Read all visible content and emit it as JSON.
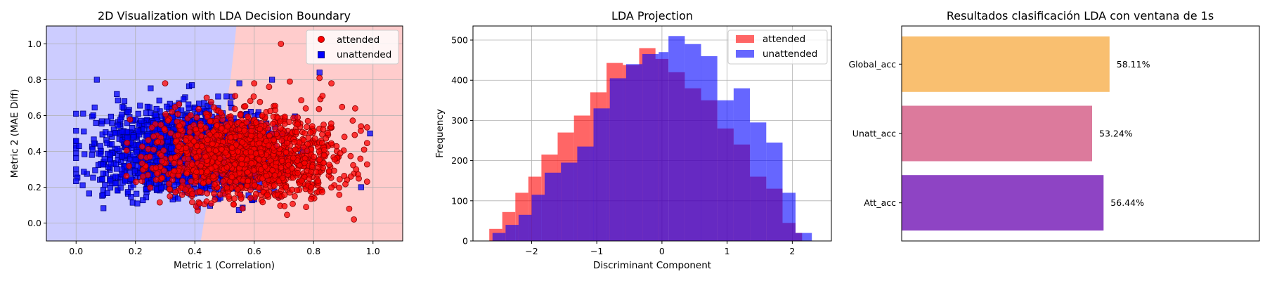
{
  "chart_data": [
    {
      "type": "scatter",
      "title": "2D Visualization with LDA Decision Boundary",
      "xlabel": "Metric 1 (Correlation)",
      "ylabel": "Metric 2 (MAE Diff)",
      "xlim": [
        -0.1,
        1.1
      ],
      "ylim": [
        -0.1,
        1.1
      ],
      "xticks": [
        "0.0",
        "0.2",
        "0.4",
        "0.6",
        "0.8",
        "1.0"
      ],
      "yticks": [
        "0.0",
        "0.2",
        "0.4",
        "0.6",
        "0.8",
        "1.0"
      ],
      "grid": true,
      "legend_position": "top-right",
      "region_colors": {
        "unattended": "#ccccff",
        "attended": "#ffcccc"
      },
      "decision_boundary": {
        "x": [
          0.54,
          0.53,
          0.52,
          0.5,
          0.48,
          0.46,
          0.44,
          0.43,
          0.42
        ],
        "y": [
          1.1,
          0.95,
          0.8,
          0.6,
          0.4,
          0.25,
          0.1,
          0.0,
          -0.1
        ]
      },
      "series": [
        {
          "name": "attended",
          "marker": "circle",
          "color": "#ff0000",
          "edge_color": "#8b0000",
          "cloud": {
            "x_range": [
              0.02,
              0.98
            ],
            "y_range": [
              0.02,
              0.78
            ],
            "x_center": 0.58,
            "y_center": 0.38
          },
          "outliers": [
            [
              0.69,
              1.0
            ],
            [
              0.82,
              0.81
            ],
            [
              0.94,
              0.64
            ],
            [
              0.97,
              0.41
            ],
            [
              0.92,
              0.08
            ],
            [
              0.86,
              0.78
            ],
            [
              0.96,
              0.54
            ],
            [
              0.83,
              0.71
            ],
            [
              0.44,
              0.7
            ],
            [
              0.65,
              0.76
            ],
            [
              0.72,
              0.79
            ],
            [
              0.3,
              0.78
            ],
            [
              0.6,
              0.78
            ]
          ]
        },
        {
          "name": "unattended",
          "marker": "square",
          "color": "#0000ff",
          "edge_color": "#00008b",
          "cloud": {
            "x_range": [
              0.0,
              0.96
            ],
            "y_range": [
              0.02,
              0.8
            ],
            "x_center": 0.36,
            "y_center": 0.4
          },
          "outliers": [
            [
              0.07,
              0.8
            ],
            [
              0.82,
              0.84
            ],
            [
              0.99,
              0.5
            ],
            [
              0.01,
              0.43
            ],
            [
              0.0,
              0.3
            ],
            [
              0.96,
              0.2
            ],
            [
              0.39,
              0.77
            ],
            [
              0.66,
              0.8
            ],
            [
              0.55,
              0.78
            ]
          ]
        }
      ]
    },
    {
      "type": "histogram",
      "title": "LDA Projection",
      "xlabel": "Discriminant Component",
      "ylabel": "Frequency",
      "xlim": [
        -2.9,
        2.6
      ],
      "ylim": [
        0,
        535
      ],
      "xticks": [
        -2,
        -1,
        0,
        1,
        2
      ],
      "yticks": [
        0,
        100,
        200,
        300,
        400,
        500
      ],
      "grid": true,
      "legend_position": "top-right",
      "series": [
        {
          "name": "attended",
          "color": "#ff0000",
          "edges": [
            -2.65,
            -2.45,
            -2.25,
            -2.05,
            -1.85,
            -1.6,
            -1.35,
            -1.1,
            -0.85,
            -0.6,
            -0.35,
            -0.1,
            0.1,
            0.35,
            0.6,
            0.85,
            1.1,
            1.35,
            1.6,
            1.85,
            2.05,
            2.15
          ],
          "values": [
            30,
            72,
            120,
            160,
            215,
            270,
            312,
            370,
            443,
            438,
            480,
            453,
            420,
            380,
            350,
            280,
            240,
            160,
            130,
            45,
            20
          ]
        },
        {
          "name": "unattended",
          "color": "#0000ff",
          "edges": [
            -2.6,
            -2.4,
            -2.2,
            -2.0,
            -1.8,
            -1.55,
            -1.3,
            -1.05,
            -0.8,
            -0.55,
            -0.3,
            -0.05,
            0.1,
            0.35,
            0.6,
            0.85,
            1.1,
            1.35,
            1.6,
            1.85,
            2.05,
            2.3
          ],
          "values": [
            20,
            40,
            65,
            115,
            170,
            195,
            235,
            330,
            405,
            440,
            465,
            470,
            510,
            490,
            460,
            350,
            380,
            295,
            245,
            120,
            20
          ]
        }
      ]
    },
    {
      "type": "bar",
      "orientation": "horizontal",
      "title": "Resultados clasificación LDA con ventana de 1s",
      "categories": [
        "Att_acc",
        "Unatt_acc",
        "Global_acc"
      ],
      "values": [
        56.44,
        53.24,
        58.11
      ],
      "data_labels": [
        "56.44%",
        "53.24%",
        "58.11%"
      ],
      "colors": [
        "#8e44c4",
        "#dc7a9c",
        "#f9bf70"
      ],
      "xlim": [
        0,
        100
      ],
      "grid": false
    }
  ]
}
